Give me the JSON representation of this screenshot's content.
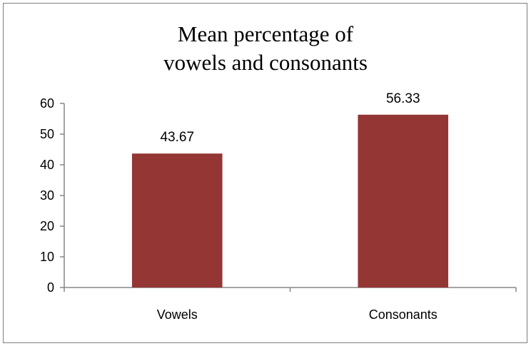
{
  "chart_data": {
    "type": "bar",
    "title": "Mean percentage of vowels and consonants",
    "categories": [
      "Vowels",
      "Consonants"
    ],
    "values": [
      43.67,
      56.33
    ],
    "data_labels": [
      "43.67",
      "56.33"
    ],
    "ylim": [
      0,
      60
    ],
    "yticks": [
      0,
      10,
      20,
      30,
      40,
      50,
      60
    ],
    "xlabel": "",
    "ylabel": "",
    "grid": false,
    "legend": "none",
    "bar_color": "#943634"
  }
}
